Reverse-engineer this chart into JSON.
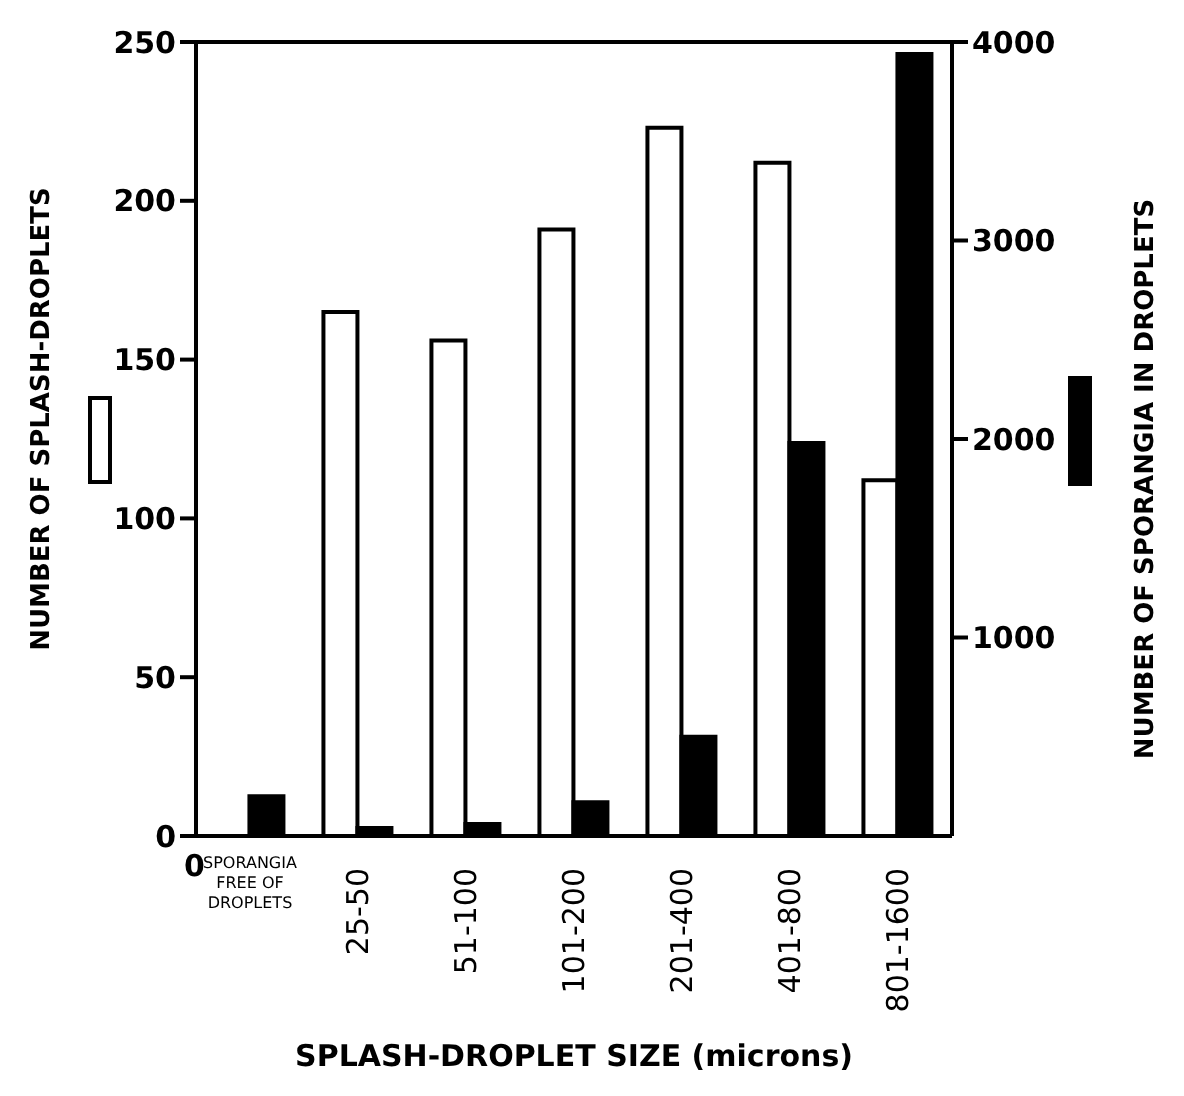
{
  "chart_data": {
    "type": "bar",
    "xlabel": "SPLASH-DROPLET SIZE (microns)",
    "ylabel": "NUMBER OF SPLASH-DROPLETS",
    "y2label": "NUMBER OF SPORANGIA IN DROPLETS",
    "categories": [
      "SPORANGIA\nFREE OF\nDROPLETS",
      "25-50",
      "51-100",
      "101-200",
      "201-400",
      "401-800",
      "801-1600"
    ],
    "series": [
      {
        "color": "#ffffff",
        "values": [
          null,
          165,
          156,
          191,
          223,
          212,
          112
        ]
      },
      {
        "color": "#000000",
        "axis": "y2",
        "values": [
          200,
          40,
          60,
          170,
          500,
          1980,
          3940
        ]
      }
    ],
    "ylim": [
      0,
      250
    ],
    "yticks": [
      0,
      50,
      100,
      150,
      200,
      250
    ],
    "y2lim": [
      0,
      4000
    ],
    "y2ticks": [
      1000,
      2000,
      3000,
      4000
    ],
    "annotations": [
      "0"
    ]
  }
}
